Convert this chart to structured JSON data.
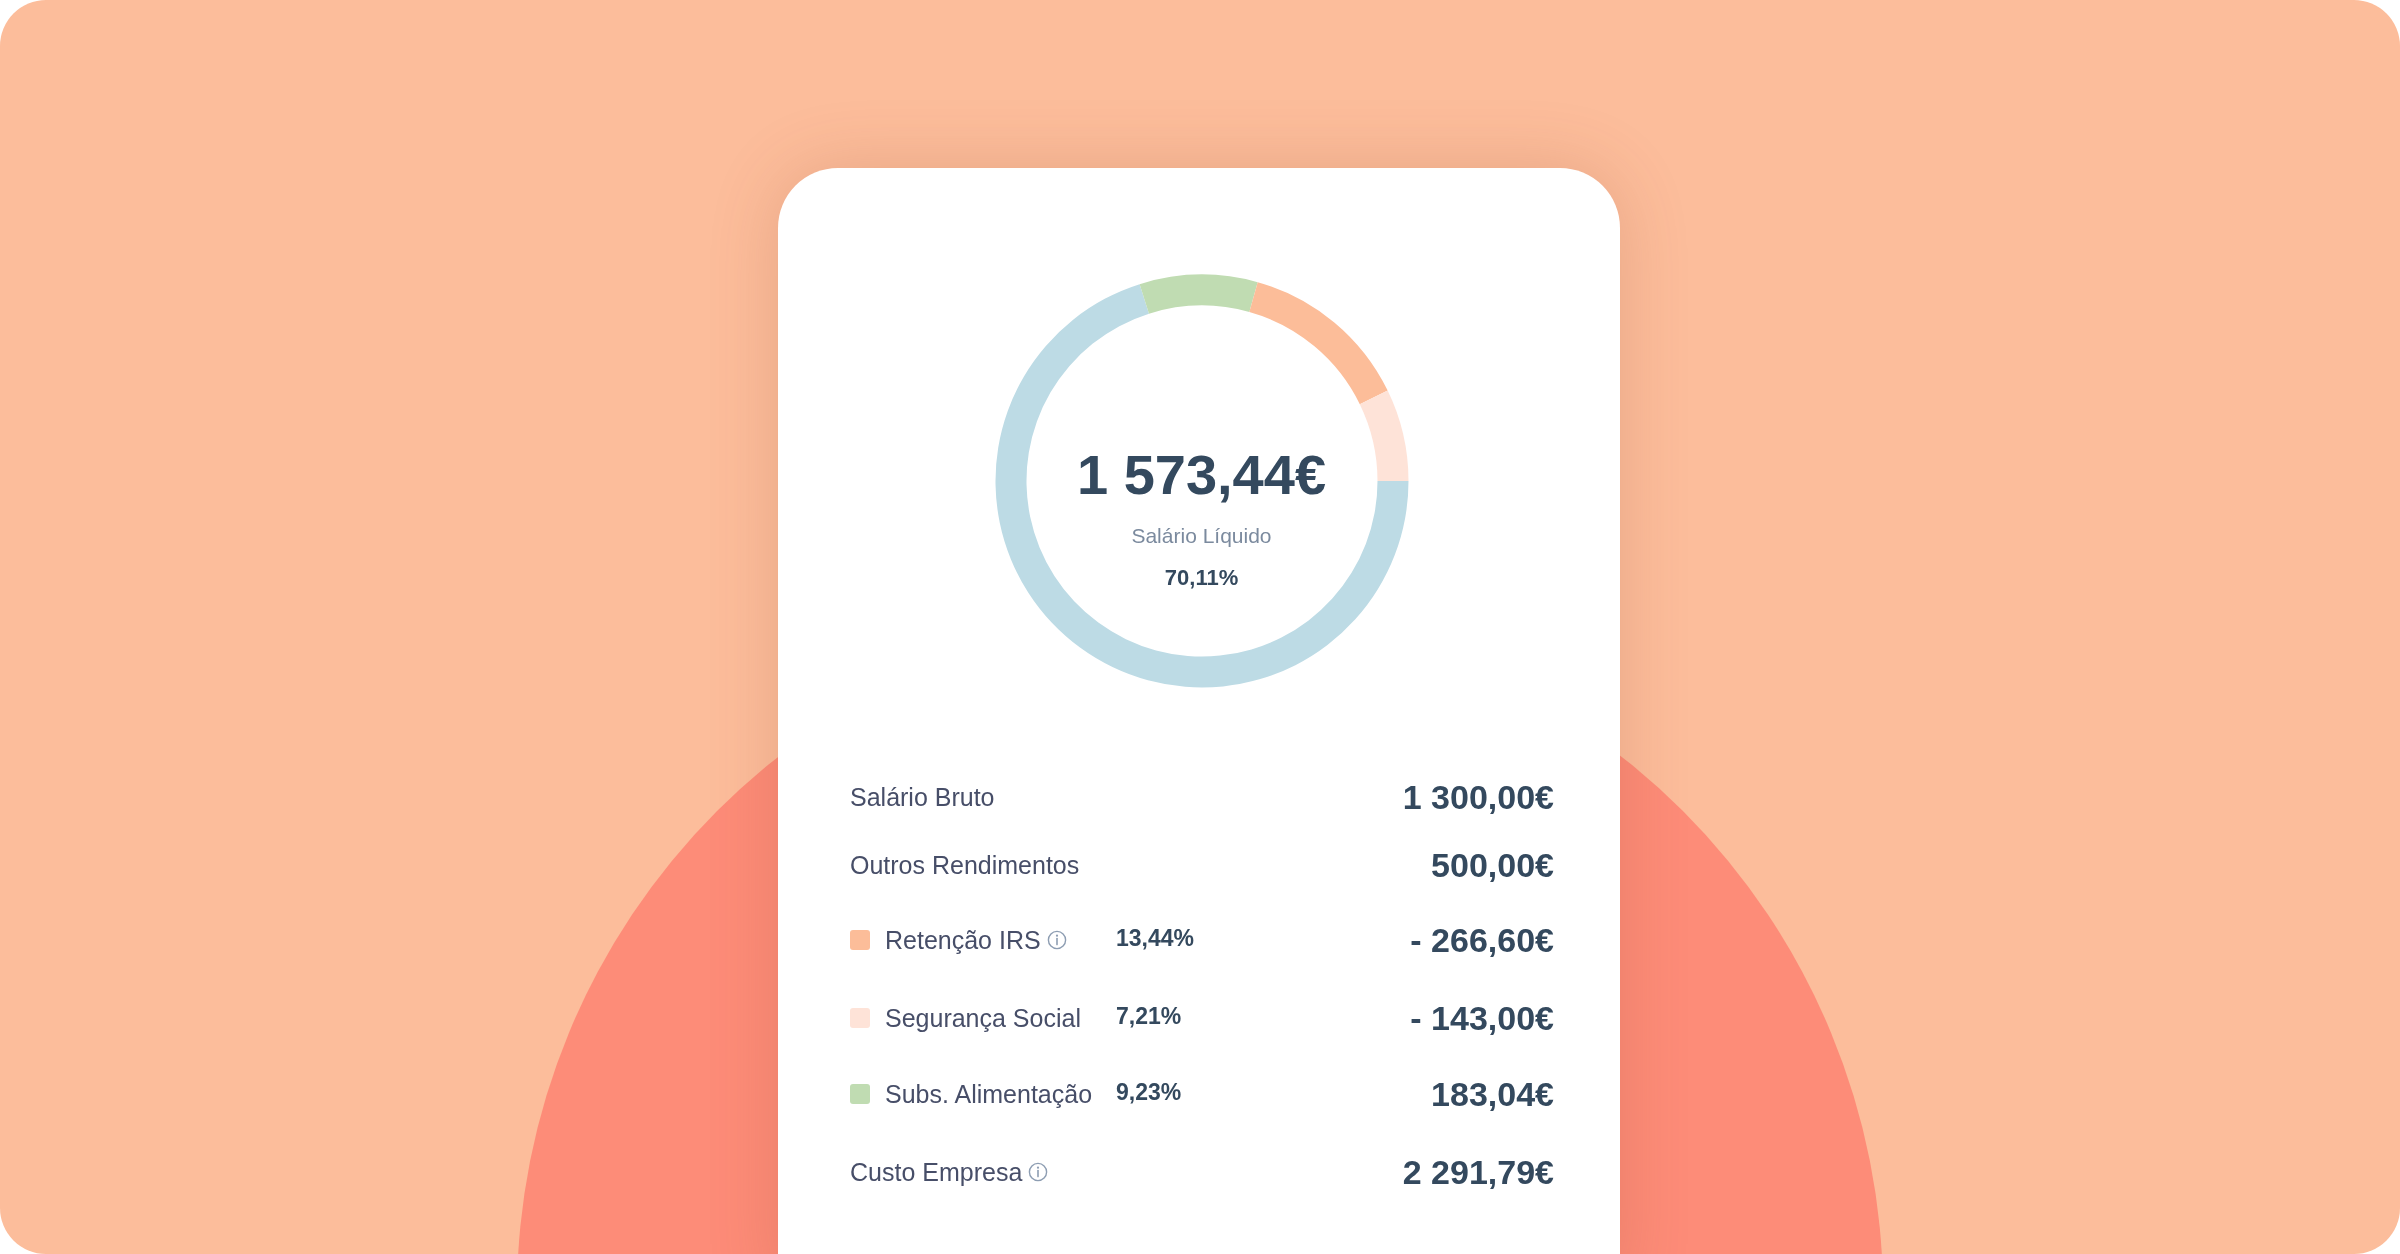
{
  "chart_data": {
    "type": "donut",
    "categories": [
      "Salário Líquido",
      "Subs. Alimentação",
      "Retenção IRS",
      "Segurança Social"
    ],
    "values": [
      70.11,
      9.23,
      13.44,
      7.21
    ],
    "colors": [
      "#bddbe5",
      "#c0dcb2",
      "#fcbd99",
      "#fee3d8"
    ],
    "value_labels": [
      "70,11%",
      "9,23%",
      "13,44%",
      "7,21%"
    ],
    "legend": "bottom",
    "annotations": [
      "1 573,44€",
      "Salário Bruto",
      "1 300,00€",
      "Outros Rendimentos",
      "500,00€",
      "- 266,60€",
      "- 143,00€",
      "183,04€",
      "Custo Empresa",
      "2 291,79€"
    ]
  }
}
